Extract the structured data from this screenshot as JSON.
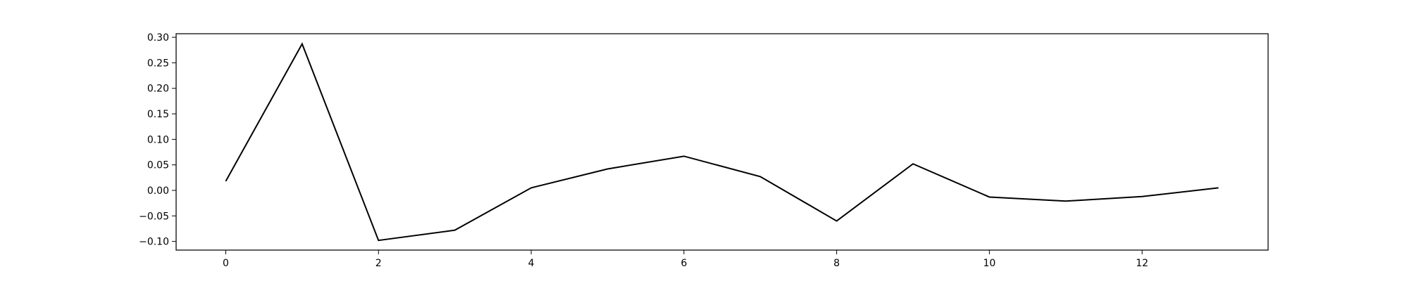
{
  "chart_data": {
    "type": "line",
    "x": [
      0,
      1,
      2,
      3,
      4,
      5,
      6,
      7,
      8,
      9,
      10,
      11,
      12,
      13
    ],
    "series": [
      {
        "values": [
          0.018,
          0.287,
          -0.098,
          -0.078,
          0.005,
          0.042,
          0.067,
          0.027,
          -0.06,
          0.052,
          -0.013,
          -0.021,
          -0.012,
          0.005
        ],
        "color": "#000000"
      }
    ],
    "xlim": [
      -0.65,
      13.65
    ],
    "ylim": [
      -0.117,
      0.307
    ],
    "xticks": [
      0,
      2,
      4,
      6,
      8,
      10,
      12
    ],
    "xtick_labels": [
      "0",
      "2",
      "4",
      "6",
      "8",
      "10",
      "12"
    ],
    "yticks": [
      -0.1,
      -0.05,
      0.0,
      0.05,
      0.1,
      0.15,
      0.2,
      0.25,
      0.3
    ],
    "ytick_labels": [
      "−0.10",
      "−0.05",
      "0.00",
      "0.05",
      "0.10",
      "0.15",
      "0.20",
      "0.25",
      "0.30"
    ],
    "grid": false,
    "legend": "none"
  }
}
